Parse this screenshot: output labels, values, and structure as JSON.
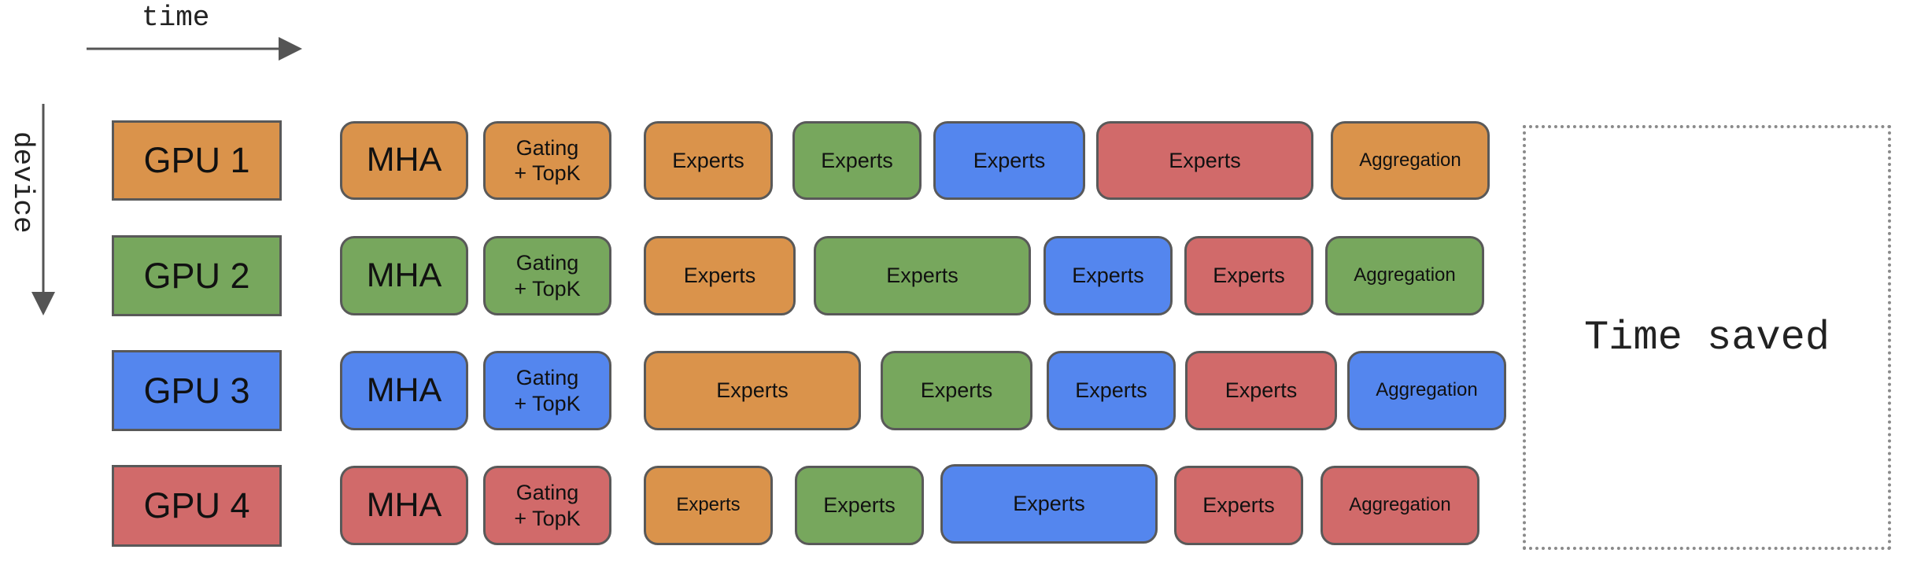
{
  "axes": {
    "time_label": "time",
    "device_label": "device"
  },
  "colors": {
    "gpu1": "#DA934B",
    "gpu2": "#77A75D",
    "gpu3": "#5486EE",
    "gpu4": "#D16A6A"
  },
  "rows": [
    {
      "gpu": "GPU 1",
      "mha": "MHA",
      "gating": "Gating\n+ TopK",
      "experts": [
        "Experts",
        "Experts",
        "Experts",
        "Experts"
      ],
      "aggregation": "Aggregation"
    },
    {
      "gpu": "GPU 2",
      "mha": "MHA",
      "gating": "Gating\n+ TopK",
      "experts": [
        "Experts",
        "Experts",
        "Experts",
        "Experts"
      ],
      "aggregation": "Aggregation"
    },
    {
      "gpu": "GPU 3",
      "mha": "MHA",
      "gating": "Gating\n+ TopK",
      "experts": [
        "Experts",
        "Experts",
        "Experts",
        "Experts"
      ],
      "aggregation": "Aggregation"
    },
    {
      "gpu": "GPU 4",
      "mha": "MHA",
      "gating": "Gating\n+ TopK",
      "experts": [
        "Experts",
        "Experts",
        "Experts",
        "Experts"
      ],
      "aggregation": "Aggregation"
    }
  ],
  "time_saved_label": "Time saved"
}
